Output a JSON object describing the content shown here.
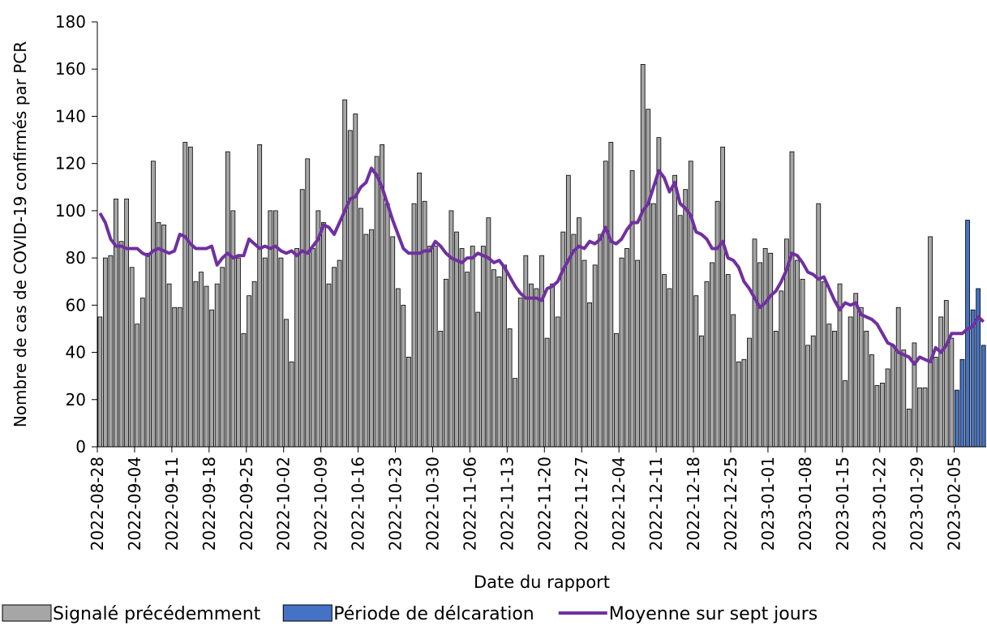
{
  "chart_data": {
    "type": "bar",
    "y_label": "Nombre de cas de COVID-19 confirmés par PCR",
    "x_label": "Date du rapport",
    "ylim": [
      0,
      180
    ],
    "yticks": [
      0,
      20,
      40,
      60,
      80,
      100,
      120,
      140,
      160,
      180
    ],
    "categories": [
      "2022-08-28",
      null,
      null,
      null,
      null,
      null,
      null,
      "2022-09-04",
      null,
      null,
      null,
      null,
      null,
      null,
      "2022-09-11",
      null,
      null,
      null,
      null,
      null,
      null,
      "2022-09-18",
      null,
      null,
      null,
      null,
      null,
      null,
      "2022-09-25",
      null,
      null,
      null,
      null,
      null,
      null,
      "2022-10-02",
      null,
      null,
      null,
      null,
      null,
      null,
      "2022-10-09",
      null,
      null,
      null,
      null,
      null,
      null,
      "2022-10-16",
      null,
      null,
      null,
      null,
      null,
      null,
      "2022-10-23",
      null,
      null,
      null,
      null,
      null,
      null,
      "2022-10-30",
      null,
      null,
      null,
      null,
      null,
      null,
      "2022-11-06",
      null,
      null,
      null,
      null,
      null,
      null,
      "2022-11-13",
      null,
      null,
      null,
      null,
      null,
      null,
      "2022-11-20",
      null,
      null,
      null,
      null,
      null,
      null,
      "2022-11-27",
      null,
      null,
      null,
      null,
      null,
      null,
      "2022-12-04",
      null,
      null,
      null,
      null,
      null,
      null,
      "2022-12-11",
      null,
      null,
      null,
      null,
      null,
      null,
      "2022-12-18",
      null,
      null,
      null,
      null,
      null,
      null,
      "2022-12-25",
      null,
      null,
      null,
      null,
      null,
      null,
      "2023-01-01",
      null,
      null,
      null,
      null,
      null,
      null,
      "2023-01-08",
      null,
      null,
      null,
      null,
      null,
      null,
      "2023-01-15",
      null,
      null,
      null,
      null,
      null,
      null,
      "2023-01-22",
      null,
      null,
      null,
      null,
      null,
      null,
      "2023-01-29",
      null,
      null,
      null,
      null,
      null,
      null,
      "2023-02-05",
      null,
      null,
      null,
      null,
      null
    ],
    "series": [
      {
        "name": "Signalé précédemment",
        "type": "bar",
        "color": "#a6a6a6",
        "values": [
          55,
          80,
          81,
          105,
          87,
          105,
          76,
          52,
          63,
          82,
          121,
          95,
          94,
          69,
          59,
          59,
          129,
          127,
          70,
          74,
          68,
          58,
          69,
          76,
          125,
          100,
          80,
          48,
          64,
          70,
          128,
          80,
          100,
          100,
          80,
          54,
          36,
          84,
          109,
          122,
          84,
          100,
          95,
          69,
          76,
          79,
          147,
          134,
          141,
          101,
          90,
          92,
          123,
          128,
          103,
          89,
          67,
          60,
          38,
          103,
          116,
          104,
          85,
          85,
          49,
          71,
          100,
          91,
          84,
          74,
          85,
          57,
          85,
          97,
          75,
          72,
          77,
          50,
          29,
          63,
          81,
          69,
          67,
          81,
          46,
          69,
          55,
          91,
          115,
          90,
          97,
          79,
          61,
          77,
          90,
          121,
          129,
          48,
          80,
          84,
          117,
          79,
          162,
          143,
          103,
          131,
          73,
          67,
          115,
          98,
          109,
          121,
          64,
          47,
          70,
          78,
          104,
          127,
          73,
          56,
          36,
          37,
          46,
          88,
          78,
          84,
          82,
          49,
          66,
          88,
          125,
          79,
          71,
          43,
          47,
          103,
          70,
          52,
          49,
          69,
          28,
          55,
          65,
          59,
          49,
          39,
          26,
          27,
          33,
          43,
          59,
          41,
          16,
          44,
          25,
          25,
          89,
          38,
          55,
          62,
          46,
          null,
          null,
          null,
          null,
          null,
          null
        ]
      },
      {
        "name": "Période de délcaration",
        "type": "bar",
        "color": "#4472c4",
        "values": [
          null,
          null,
          null,
          null,
          null,
          null,
          null,
          null,
          null,
          null,
          null,
          null,
          null,
          null,
          null,
          null,
          null,
          null,
          null,
          null,
          null,
          null,
          null,
          null,
          null,
          null,
          null,
          null,
          null,
          null,
          null,
          null,
          null,
          null,
          null,
          null,
          null,
          null,
          null,
          null,
          null,
          null,
          null,
          null,
          null,
          null,
          null,
          null,
          null,
          null,
          null,
          null,
          null,
          null,
          null,
          null,
          null,
          null,
          null,
          null,
          null,
          null,
          null,
          null,
          null,
          null,
          null,
          null,
          null,
          null,
          null,
          null,
          null,
          null,
          null,
          null,
          null,
          null,
          null,
          null,
          null,
          null,
          null,
          null,
          null,
          null,
          null,
          null,
          null,
          null,
          null,
          null,
          null,
          null,
          null,
          null,
          null,
          null,
          null,
          null,
          null,
          null,
          null,
          null,
          null,
          null,
          null,
          null,
          null,
          null,
          null,
          null,
          null,
          null,
          null,
          null,
          null,
          null,
          null,
          null,
          null,
          null,
          null,
          null,
          null,
          null,
          null,
          null,
          null,
          null,
          null,
          null,
          null,
          null,
          null,
          null,
          null,
          null,
          null,
          null,
          null,
          null,
          null,
          null,
          null,
          null,
          null,
          null,
          null,
          null,
          null,
          null,
          null,
          null,
          null,
          null,
          null,
          null,
          null,
          null,
          null,
          24,
          37,
          96,
          58,
          67,
          43
        ]
      },
      {
        "name": "Moyenne sur sept jours",
        "type": "line",
        "color": "#7030a0",
        "values": [
          99,
          95,
          88,
          85,
          85,
          84,
          84,
          84,
          82,
          81,
          83,
          84,
          83,
          82,
          83,
          90,
          89,
          86,
          84,
          84,
          84,
          85,
          77,
          80,
          82,
          80,
          81,
          81,
          88,
          86,
          84,
          85,
          84,
          85,
          83,
          82,
          83,
          81,
          83,
          82,
          85,
          88,
          94,
          93,
          90,
          95,
          100,
          105,
          106,
          110,
          112,
          118,
          115,
          110,
          103,
          96,
          90,
          84,
          82,
          82,
          82,
          83,
          83,
          87,
          85,
          82,
          80,
          79,
          78,
          80,
          80,
          82,
          81,
          80,
          78,
          79,
          76,
          72,
          68,
          65,
          63,
          63,
          63,
          62,
          67,
          68,
          70,
          75,
          79,
          83,
          85,
          84,
          87,
          86,
          88,
          93,
          87,
          86,
          88,
          92,
          95,
          95,
          100,
          103,
          110,
          117,
          114,
          108,
          112,
          103,
          101,
          98,
          91,
          90,
          88,
          84,
          84,
          87,
          80,
          79,
          76,
          70,
          67,
          63,
          59,
          61,
          64,
          66,
          70,
          75,
          82,
          81,
          78,
          74,
          73,
          71,
          72,
          67,
          62,
          58,
          61,
          60,
          61,
          56,
          55,
          54,
          52,
          48,
          44,
          43,
          40,
          39,
          38,
          35,
          38,
          37,
          36,
          42,
          40,
          43,
          48,
          48,
          48,
          50,
          51,
          55,
          53
        ]
      }
    ]
  }
}
